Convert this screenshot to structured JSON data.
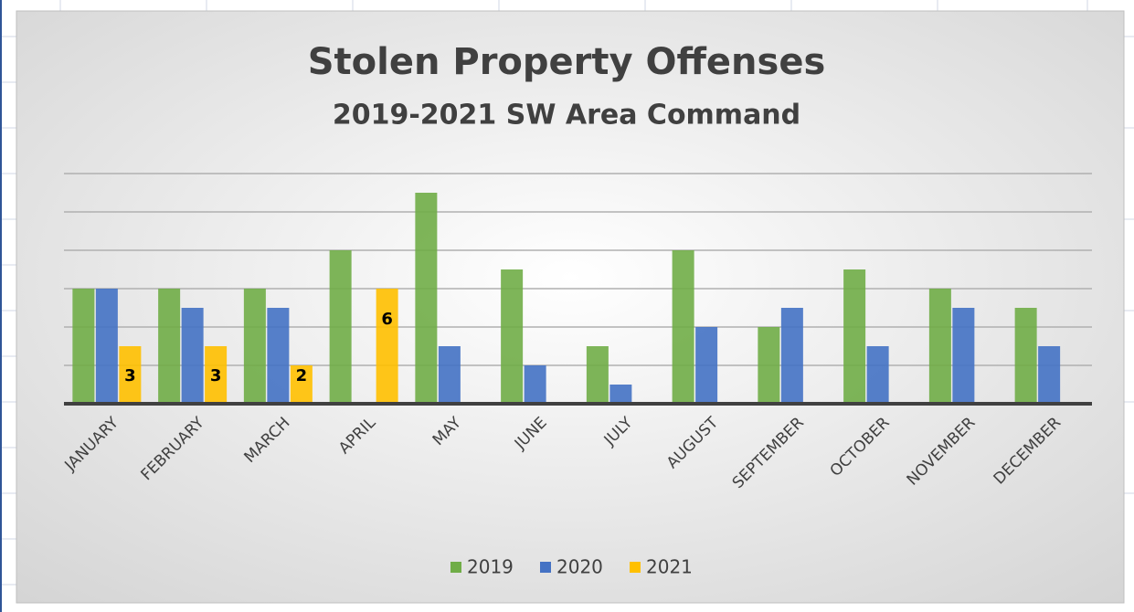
{
  "chart_data": {
    "type": "bar",
    "title": "Stolen Property Offenses",
    "subtitle": "2019-2021 SW Area Command",
    "categories": [
      "JANUARY",
      "FEBRUARY",
      "MARCH",
      "APRIL",
      "MAY",
      "JUNE",
      "JULY",
      "AUGUST",
      "SEPTEMBER",
      "OCTOBER",
      "NOVEMBER",
      "DECEMBER"
    ],
    "series": [
      {
        "name": "2019",
        "color": "#70ad47",
        "values": [
          6,
          6,
          6,
          8,
          11,
          7,
          3,
          8,
          4,
          7,
          6,
          5
        ]
      },
      {
        "name": "2020",
        "color": "#4472c4",
        "values": [
          6,
          5,
          5,
          0,
          3,
          2,
          1,
          4,
          5,
          3,
          5,
          3
        ]
      },
      {
        "name": "2021",
        "color": "#ffc000",
        "values": [
          3,
          3,
          2,
          6,
          null,
          null,
          null,
          null,
          null,
          null,
          null,
          null
        ],
        "data_labels": true
      }
    ],
    "ylim": [
      0,
      12
    ],
    "yticks": [
      0,
      2,
      4,
      6,
      8,
      10,
      12
    ],
    "grid": true,
    "legend": "bottom"
  }
}
